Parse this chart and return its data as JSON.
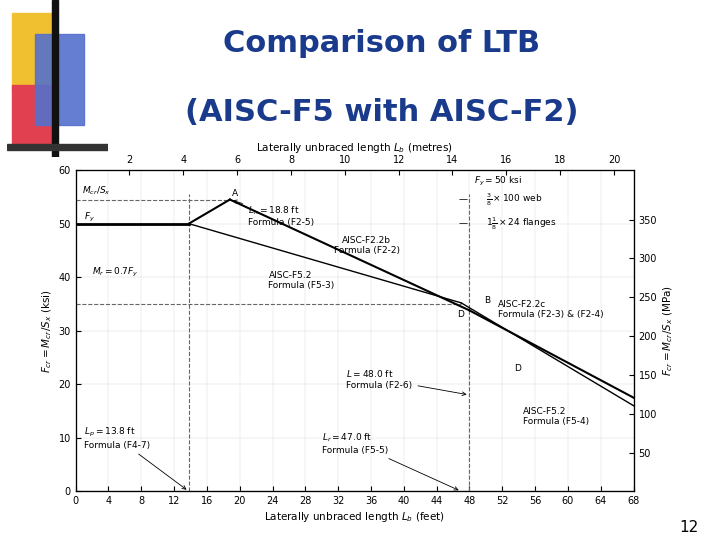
{
  "title_line1": "Comparison of LTB",
  "title_line2": "(AISC-F5 with AISC-F2)",
  "title_color": "#1a3a8c",
  "title_fontsize": 22,
  "slide_number": "12",
  "bg_color": "#ffffff",
  "chart_bg": "#ffffff",
  "xlabel_bottom": "Laterally unbraced length $L_b$ (feet)",
  "xlabel_top": "Laterally unbraced length $L_b$ (metres)",
  "ylabel_left": "$F_{cr} = M_{cr}/S_x$ (ksi)",
  "ylabel_right": "$F_{cr} = M_{cr}/S_x$ (MPa)",
  "xlim_feet": [
    0,
    68
  ],
  "ylim_ksi": [
    0,
    60
  ],
  "xticks_feet": [
    0,
    4,
    8,
    12,
    16,
    20,
    24,
    28,
    32,
    36,
    40,
    44,
    48,
    52,
    56,
    60,
    64,
    68
  ],
  "xticks_metres": [
    2,
    4,
    6,
    8,
    10,
    12,
    14,
    16,
    18,
    20
  ],
  "xticks_metres_pos": [
    6.56,
    13.12,
    19.69,
    26.25,
    32.81,
    39.37,
    45.93,
    52.49,
    59.06,
    65.62
  ],
  "yticks_ksi": [
    0,
    10,
    20,
    30,
    40,
    50,
    60
  ],
  "yticks_mpa": [
    50,
    100,
    150,
    200,
    250,
    300,
    350
  ],
  "yticks_mpa_pos": [
    7.25,
    14.5,
    21.76,
    29.01,
    36.26,
    43.51,
    50.76
  ],
  "Fy": 50,
  "Mr": 35,
  "Mex_Sx": 54.5,
  "Lp_feet": 13.8,
  "Ln_feet": 18.8,
  "Lr_feet": 47.0,
  "L_feet": 48.0,
  "curve_lw": 1.5,
  "curve_lw2": 1.0,
  "dashed_lw": 0.8
}
